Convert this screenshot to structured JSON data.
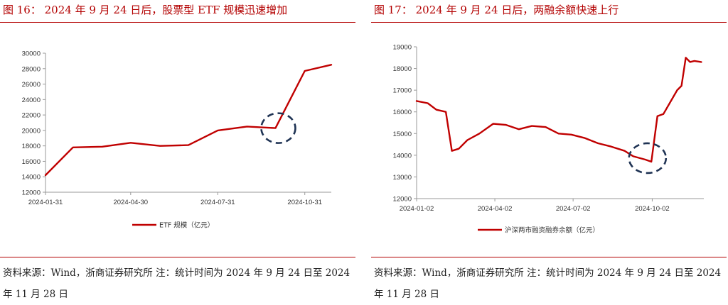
{
  "left_panel": {
    "figure_title": "图 16： 2024 年 9 月 24 日后，股票型 ETF 规模迅速增加",
    "source_text": "资料来源：Wind，浙商证券研究所 注：统计时间为 2024 年 9 月 24 日至 2024 年 11 月 28 日"
  },
  "right_panel": {
    "figure_title": "图 17： 2024 年 9 月 24 日后，两融余额快速上行",
    "source_text": "资料来源：Wind，浙商证券研究所 注：统计时间为 2024 年 9 月 24 日至 2024 年 11 月 28 日"
  },
  "colors": {
    "accent": "#b30000",
    "line": "#c00000",
    "highlight_circle": "#1f3354",
    "axis": "#999999"
  },
  "chart_data": [
    {
      "type": "line",
      "title": "",
      "xlabel": "",
      "ylabel": "",
      "ylim": [
        12000,
        30000
      ],
      "y_ticks": [
        "12000",
        "14000",
        "16000",
        "18000",
        "20000",
        "22000",
        "24000",
        "26000",
        "28000",
        "30000"
      ],
      "x_ticks": [
        "2024-01-31",
        "2024-04-30",
        "2024-07-31",
        "2024-10-31"
      ],
      "grid": false,
      "legend_position": "bottom",
      "series": [
        {
          "name": "ETF 规模（亿元）",
          "x": [
            "2024-01-31",
            "2024-02-29",
            "2024-03-31",
            "2024-04-30",
            "2024-05-31",
            "2024-06-30",
            "2024-07-31",
            "2024-08-31",
            "2024-09-30",
            "2024-10-31",
            "2024-11-28"
          ],
          "values": [
            14200,
            17800,
            17900,
            18400,
            18000,
            18100,
            20000,
            20500,
            20300,
            27700,
            28500
          ]
        }
      ],
      "annotations": [
        {
          "type": "dashed-circle",
          "x": "2024-09-30",
          "y": 20300
        }
      ]
    },
    {
      "type": "line",
      "title": "",
      "xlabel": "",
      "ylabel": "",
      "ylim": [
        12000,
        19000
      ],
      "y_ticks": [
        "12000",
        "13000",
        "14000",
        "15000",
        "16000",
        "17000",
        "18000",
        "19000"
      ],
      "x_ticks": [
        "2024-01-02",
        "2024-04-02",
        "2024-07-02",
        "2024-10-02"
      ],
      "grid": false,
      "legend_position": "bottom",
      "series": [
        {
          "name": "沪深两市融资融券余额（亿元）",
          "x": [
            "2024-01-02",
            "2024-01-15",
            "2024-01-25",
            "2024-02-05",
            "2024-02-12",
            "2024-02-20",
            "2024-03-01",
            "2024-03-15",
            "2024-03-31",
            "2024-04-15",
            "2024-04-30",
            "2024-05-15",
            "2024-05-31",
            "2024-06-15",
            "2024-06-30",
            "2024-07-15",
            "2024-07-31",
            "2024-08-15",
            "2024-08-31",
            "2024-09-10",
            "2024-09-24",
            "2024-10-01",
            "2024-10-08",
            "2024-10-15",
            "2024-10-31",
            "2024-11-05",
            "2024-11-10",
            "2024-11-15",
            "2024-11-20",
            "2024-11-28"
          ],
          "values": [
            16500,
            16400,
            16100,
            16000,
            14200,
            14300,
            14700,
            15000,
            15450,
            15400,
            15200,
            15350,
            15300,
            15000,
            14950,
            14800,
            14550,
            14400,
            14200,
            13950,
            13800,
            13700,
            15800,
            15900,
            17000,
            17200,
            18500,
            18300,
            18350,
            18300
          ]
        }
      ],
      "annotations": [
        {
          "type": "dashed-circle",
          "x": "2024-09-24",
          "y": 13800
        }
      ]
    }
  ]
}
